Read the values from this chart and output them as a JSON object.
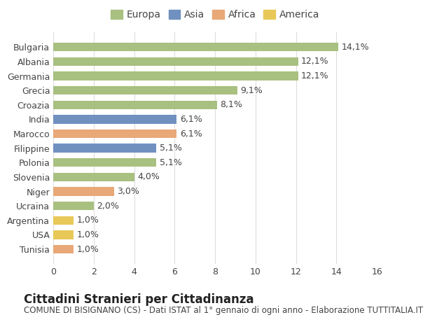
{
  "categories": [
    "Bulgaria",
    "Albania",
    "Germania",
    "Grecia",
    "Croazia",
    "India",
    "Marocco",
    "Filippine",
    "Polonia",
    "Slovenia",
    "Niger",
    "Ucraina",
    "Argentina",
    "USA",
    "Tunisia"
  ],
  "values": [
    14.1,
    12.1,
    12.1,
    9.1,
    8.1,
    6.1,
    6.1,
    5.1,
    5.1,
    4.0,
    3.0,
    2.0,
    1.0,
    1.0,
    1.0
  ],
  "labels": [
    "14,1%",
    "12,1%",
    "12,1%",
    "9,1%",
    "8,1%",
    "6,1%",
    "6,1%",
    "5,1%",
    "5,1%",
    "4,0%",
    "3,0%",
    "2,0%",
    "1,0%",
    "1,0%",
    "1,0%"
  ],
  "continents": [
    "Europa",
    "Europa",
    "Europa",
    "Europa",
    "Europa",
    "Asia",
    "Africa",
    "Asia",
    "Europa",
    "Europa",
    "Africa",
    "Europa",
    "America",
    "America",
    "Africa"
  ],
  "continent_colors": {
    "Europa": "#a8c080",
    "Asia": "#7090c0",
    "Africa": "#e8a878",
    "America": "#e8c858"
  },
  "legend_order": [
    "Europa",
    "Asia",
    "Africa",
    "America"
  ],
  "xlim": [
    0,
    16
  ],
  "xticks": [
    0,
    2,
    4,
    6,
    8,
    10,
    12,
    14,
    16
  ],
  "title": "Cittadini Stranieri per Cittadinanza",
  "subtitle": "COMUNE DI BISIGNANO (CS) - Dati ISTAT al 1° gennaio di ogni anno - Elaborazione TUTTITALIA.IT",
  "background_color": "#ffffff",
  "grid_color": "#dddddd",
  "bar_height": 0.6,
  "label_fontsize": 9,
  "title_fontsize": 12,
  "subtitle_fontsize": 8.5,
  "axis_fontsize": 9,
  "legend_fontsize": 10
}
